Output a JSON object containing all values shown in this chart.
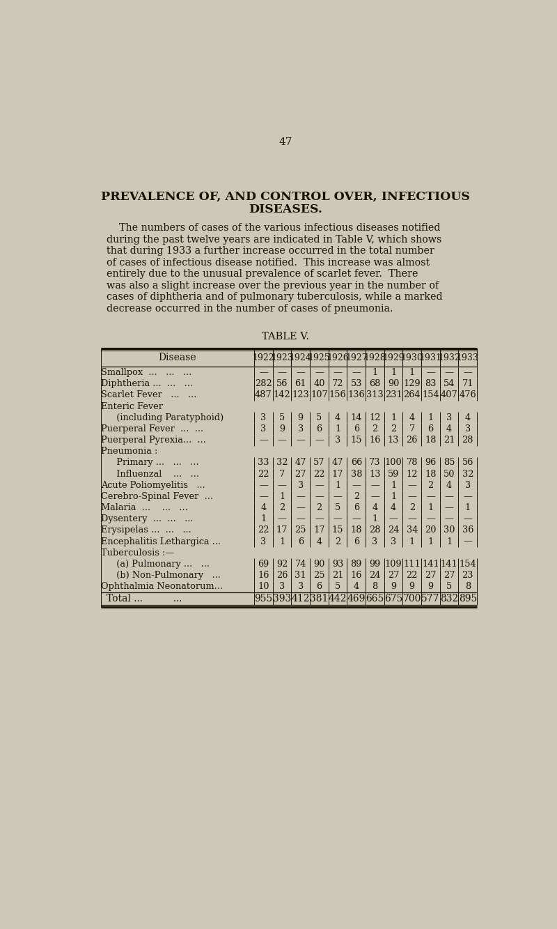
{
  "page_number": "47",
  "background_color": "#cdc8b8",
  "title_line1": "PREVALENCE OF, AND CONTROL OVER, INFECTIOUS",
  "title_line2": "DISEASES.",
  "para_lines": [
    "    The numbers of cases of the various infectious diseases notified",
    "during the past twelve years are indicated in Table V, which shows",
    "that during 1933 a further increase occurred in the total number",
    "of cases of infectious disease notified.  This increase was almost",
    "entirely due to the unusual prevalence of scarlet fever.  There",
    "was also a slight increase over the previous year in the number of",
    "cases of diphtheria and of pulmonary tuberculosis, while a marked",
    "decrease occurred in the number of cases of pneumonia."
  ],
  "table_title": "TABLE V.",
  "years": [
    "1922",
    "1923",
    "1924",
    "1925",
    "1926",
    "1927",
    "1928",
    "1929",
    "1930",
    "1931",
    "1932",
    "1933"
  ],
  "rows": [
    {
      "label": "Smallpox  ...   ...   ...",
      "indent": 0,
      "values": [
        "—",
        "—",
        "—",
        "—",
        "—",
        "—",
        "1",
        "1",
        "1",
        "—",
        "—",
        "—"
      ]
    },
    {
      "label": "Diphtheria ...  ...   ...",
      "indent": 0,
      "values": [
        "282",
        "56",
        "61",
        "40",
        "72",
        "53",
        "68",
        "90",
        "129",
        "83",
        "54",
        "71"
      ]
    },
    {
      "label": "Scarlet Fever   ...   ...",
      "indent": 0,
      "values": [
        "487",
        "142",
        "123",
        "107",
        "156",
        "136",
        "313",
        "231",
        "264",
        "154",
        "407",
        "476"
      ]
    },
    {
      "label": "Enteric Fever",
      "indent": 0,
      "values": [
        "",
        "",
        "",
        "",
        "",
        "",
        "",
        "",
        "",
        "",
        "",
        ""
      ]
    },
    {
      "label": "  (including Paratyphoid)",
      "indent": 1,
      "values": [
        "3",
        "5",
        "9",
        "5",
        "4",
        "14",
        "12",
        "1",
        "4",
        "1",
        "3",
        "4"
      ]
    },
    {
      "label": "Puerperal Fever  ...  ...",
      "indent": 0,
      "values": [
        "3",
        "9",
        "3",
        "6",
        "1",
        "6",
        "2",
        "2",
        "7",
        "6",
        "4",
        "3"
      ]
    },
    {
      "label": "Puerperal Pyrexia...  ...",
      "indent": 0,
      "values": [
        "—",
        "—",
        "—",
        "—",
        "3",
        "15",
        "16",
        "13",
        "26",
        "18",
        "21",
        "28"
      ]
    },
    {
      "label": "Pneumonia :",
      "indent": 0,
      "values": [
        "",
        "",
        "",
        "",
        "",
        "",
        "",
        "",
        "",
        "",
        "",
        ""
      ]
    },
    {
      "label": "  Primary ...   ...   ...",
      "indent": 1,
      "values": [
        "33",
        "32",
        "47",
        "57",
        "47",
        "66",
        "73",
        "100",
        "78",
        "96",
        "85",
        "56"
      ]
    },
    {
      "label": "  Influenzal    ...   ...",
      "indent": 1,
      "values": [
        "22",
        "7",
        "27",
        "22",
        "17",
        "38",
        "13",
        "59",
        "12",
        "18",
        "50",
        "32"
      ]
    },
    {
      "label": "Acute Poliomyelitis   ...",
      "indent": 0,
      "values": [
        "—",
        "—",
        "3",
        "—",
        "1",
        "—",
        "—",
        "1",
        "—",
        "2",
        "4",
        "3"
      ]
    },
    {
      "label": "Cerebro-Spinal Fever  ...",
      "indent": 0,
      "values": [
        "—",
        "1",
        "—",
        "—",
        "—",
        "2",
        "—",
        "1",
        "—",
        "—",
        "—",
        "—"
      ]
    },
    {
      "label": "Malaria  ...    ...   ...",
      "indent": 0,
      "values": [
        "4",
        "2",
        "—",
        "2",
        "5",
        "6",
        "4",
        "4",
        "2",
        "1",
        "—",
        "1"
      ]
    },
    {
      "label": "Dysentery  ...  ...   ...",
      "indent": 0,
      "values": [
        "1",
        "—",
        "—",
        "—",
        "—",
        "—",
        "1",
        "—",
        "—",
        "—",
        "—",
        "—"
      ]
    },
    {
      "label": "Erysipelas ...  ...   ...",
      "indent": 0,
      "values": [
        "22",
        "17",
        "25",
        "17",
        "15",
        "18",
        "28",
        "24",
        "34",
        "20",
        "30",
        "36"
      ]
    },
    {
      "label": "Encephalitis Lethargica ...",
      "indent": 0,
      "values": [
        "3",
        "1",
        "6",
        "4",
        "2",
        "6",
        "3",
        "3",
        "1",
        "1",
        "1",
        "—"
      ]
    },
    {
      "label": "Tuberculosis :—",
      "indent": 0,
      "values": [
        "",
        "",
        "",
        "",
        "",
        "",
        "",
        "",
        "",
        "",
        "",
        ""
      ]
    },
    {
      "label": "  (a) Pulmonary ...   ...",
      "indent": 1,
      "values": [
        "69",
        "92",
        "74",
        "90",
        "93",
        "89",
        "99",
        "109",
        "111",
        "141",
        "141",
        "154"
      ]
    },
    {
      "label": "  (b) Non-Pulmonary   ...",
      "indent": 1,
      "values": [
        "16",
        "26",
        "31",
        "25",
        "21",
        "16",
        "24",
        "27",
        "22",
        "27",
        "27",
        "23"
      ]
    },
    {
      "label": "Ophthalmia Neonatorum...",
      "indent": 0,
      "values": [
        "10",
        "3",
        "3",
        "6",
        "5",
        "4",
        "8",
        "9",
        "9",
        "9",
        "5",
        "8"
      ]
    }
  ],
  "total_label": "Total ...          ...",
  "total_values": [
    "955",
    "393",
    "412",
    "381",
    "442",
    "469",
    "665",
    "675",
    "700",
    "577",
    "832",
    "895"
  ],
  "text_color": "#1a1208",
  "line_color": "#1a1208"
}
